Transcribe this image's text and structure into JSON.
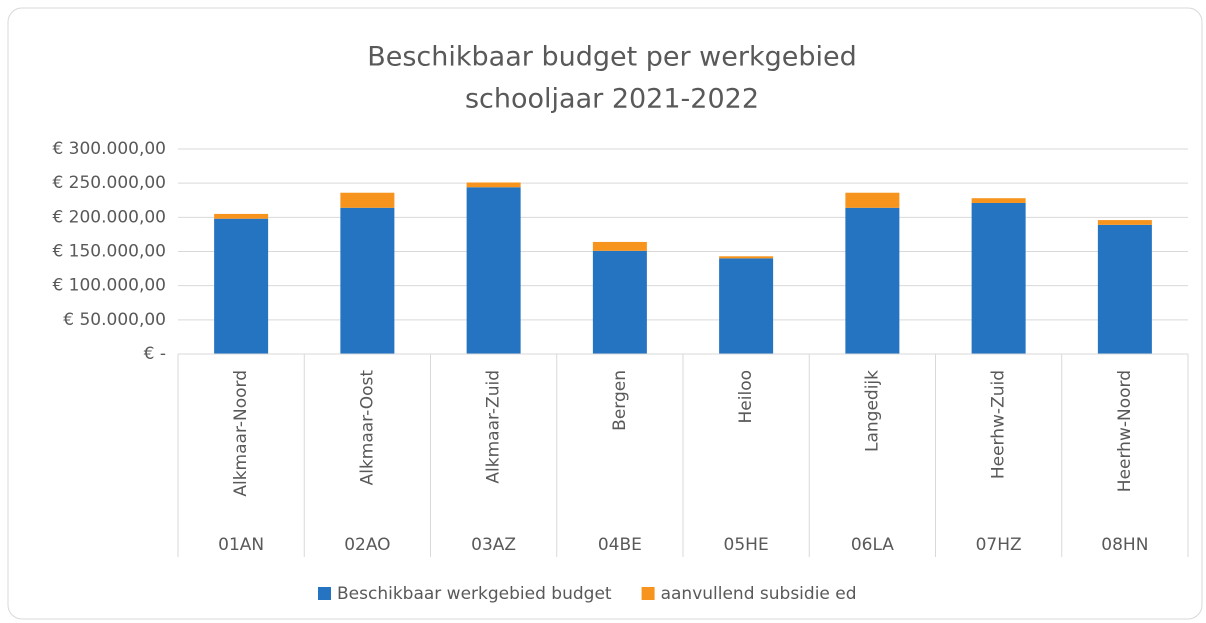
{
  "chart_data": {
    "type": "stacked_bar",
    "title": "Beschikbaar budget per werkgebied",
    "subtitle": "schooljaar 2021-2022",
    "categories": [
      "Alkmaar-Noord",
      "Alkmaar-Oost",
      "Alkmaar-Zuid",
      "Bergen",
      "Heiloo",
      "Langedijk",
      "Heerhw-Zuid",
      "Heerhw-Noord"
    ],
    "category_codes": [
      "01AN",
      "02AO",
      "03AZ",
      "04BE",
      "05HE",
      "06LA",
      "07HZ",
      "08HN"
    ],
    "series": [
      {
        "name": "Beschikbaar werkgebied budget",
        "color": "#2474c1",
        "values": [
          198000,
          214000,
          244000,
          151000,
          140000,
          214000,
          221000,
          189000
        ]
      },
      {
        "name": "aanvullend subsidie ed",
        "color": "#f7941d",
        "values": [
          7000,
          22000,
          7000,
          13000,
          3000,
          22000,
          7000,
          7000
        ]
      }
    ],
    "ylim": [
      0,
      300000
    ],
    "yticks": [
      {
        "value": 0,
        "label": "€ -"
      },
      {
        "value": 50000,
        "label": "€ 50.000,00"
      },
      {
        "value": 100000,
        "label": "€ 100.000,00"
      },
      {
        "value": 150000,
        "label": "€ 150.000,00"
      },
      {
        "value": 200000,
        "label": "€ 200.000,00"
      },
      {
        "value": 250000,
        "label": "€ 250.000,00"
      },
      {
        "value": 300000,
        "label": "€ 300.000,00"
      }
    ],
    "grid": true,
    "legend": "bottom"
  }
}
